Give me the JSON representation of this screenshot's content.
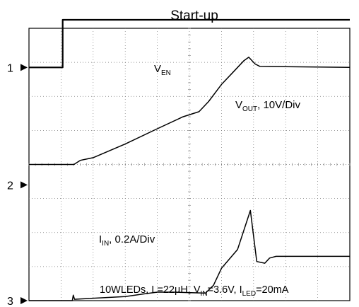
{
  "title": "Start-up",
  "chart_data": {
    "type": "line",
    "title": "Start-up",
    "grid": true,
    "divisions": {
      "x": 10,
      "y": 8
    },
    "channel_markers": [
      "1",
      "2",
      "3"
    ],
    "annotations": {
      "ven": {
        "main": "V",
        "sub": "EN",
        "rest": ""
      },
      "vout": {
        "main": "V",
        "sub": "OUT",
        "rest": ", 10V/Div"
      },
      "iin": {
        "main": "I",
        "sub": "IN",
        "rest": ", 0.2A/Div"
      },
      "conditions": {
        "part1": "10WLEDs, L=22µH, V",
        "sub1": "IN",
        "part2": "=3.6V, I",
        "sub2": "LED",
        "part3": "=20mA"
      }
    },
    "series": [
      {
        "id": "ven",
        "x": [
          0,
          1.05,
          1.05,
          10
        ],
        "y": [
          6.85,
          6.85,
          8.25,
          8.25
        ]
      },
      {
        "id": "vout",
        "x": [
          0,
          1.4,
          1.6,
          2.0,
          3.0,
          4.0,
          4.8,
          5.3,
          5.6,
          6.0,
          6.4,
          6.7,
          6.85,
          7.05,
          7.2,
          10
        ],
        "y": [
          4.0,
          4.0,
          4.12,
          4.2,
          4.6,
          5.05,
          5.4,
          5.55,
          5.85,
          6.35,
          6.75,
          7.05,
          7.15,
          6.95,
          6.88,
          6.85
        ]
      },
      {
        "id": "iin",
        "x": [
          0,
          1.35,
          1.38,
          1.42,
          1.6,
          3.0,
          3.6,
          4.0,
          4.5,
          5.5,
          5.75,
          6.0,
          6.5,
          6.9,
          7.1,
          7.35,
          7.5,
          7.7,
          10
        ],
        "y": [
          0.0,
          0.0,
          0.16,
          0.04,
          0.05,
          0.12,
          0.2,
          0.25,
          0.25,
          0.22,
          0.45,
          0.95,
          1.5,
          2.65,
          1.15,
          1.1,
          1.25,
          1.3,
          1.3
        ]
      }
    ]
  }
}
